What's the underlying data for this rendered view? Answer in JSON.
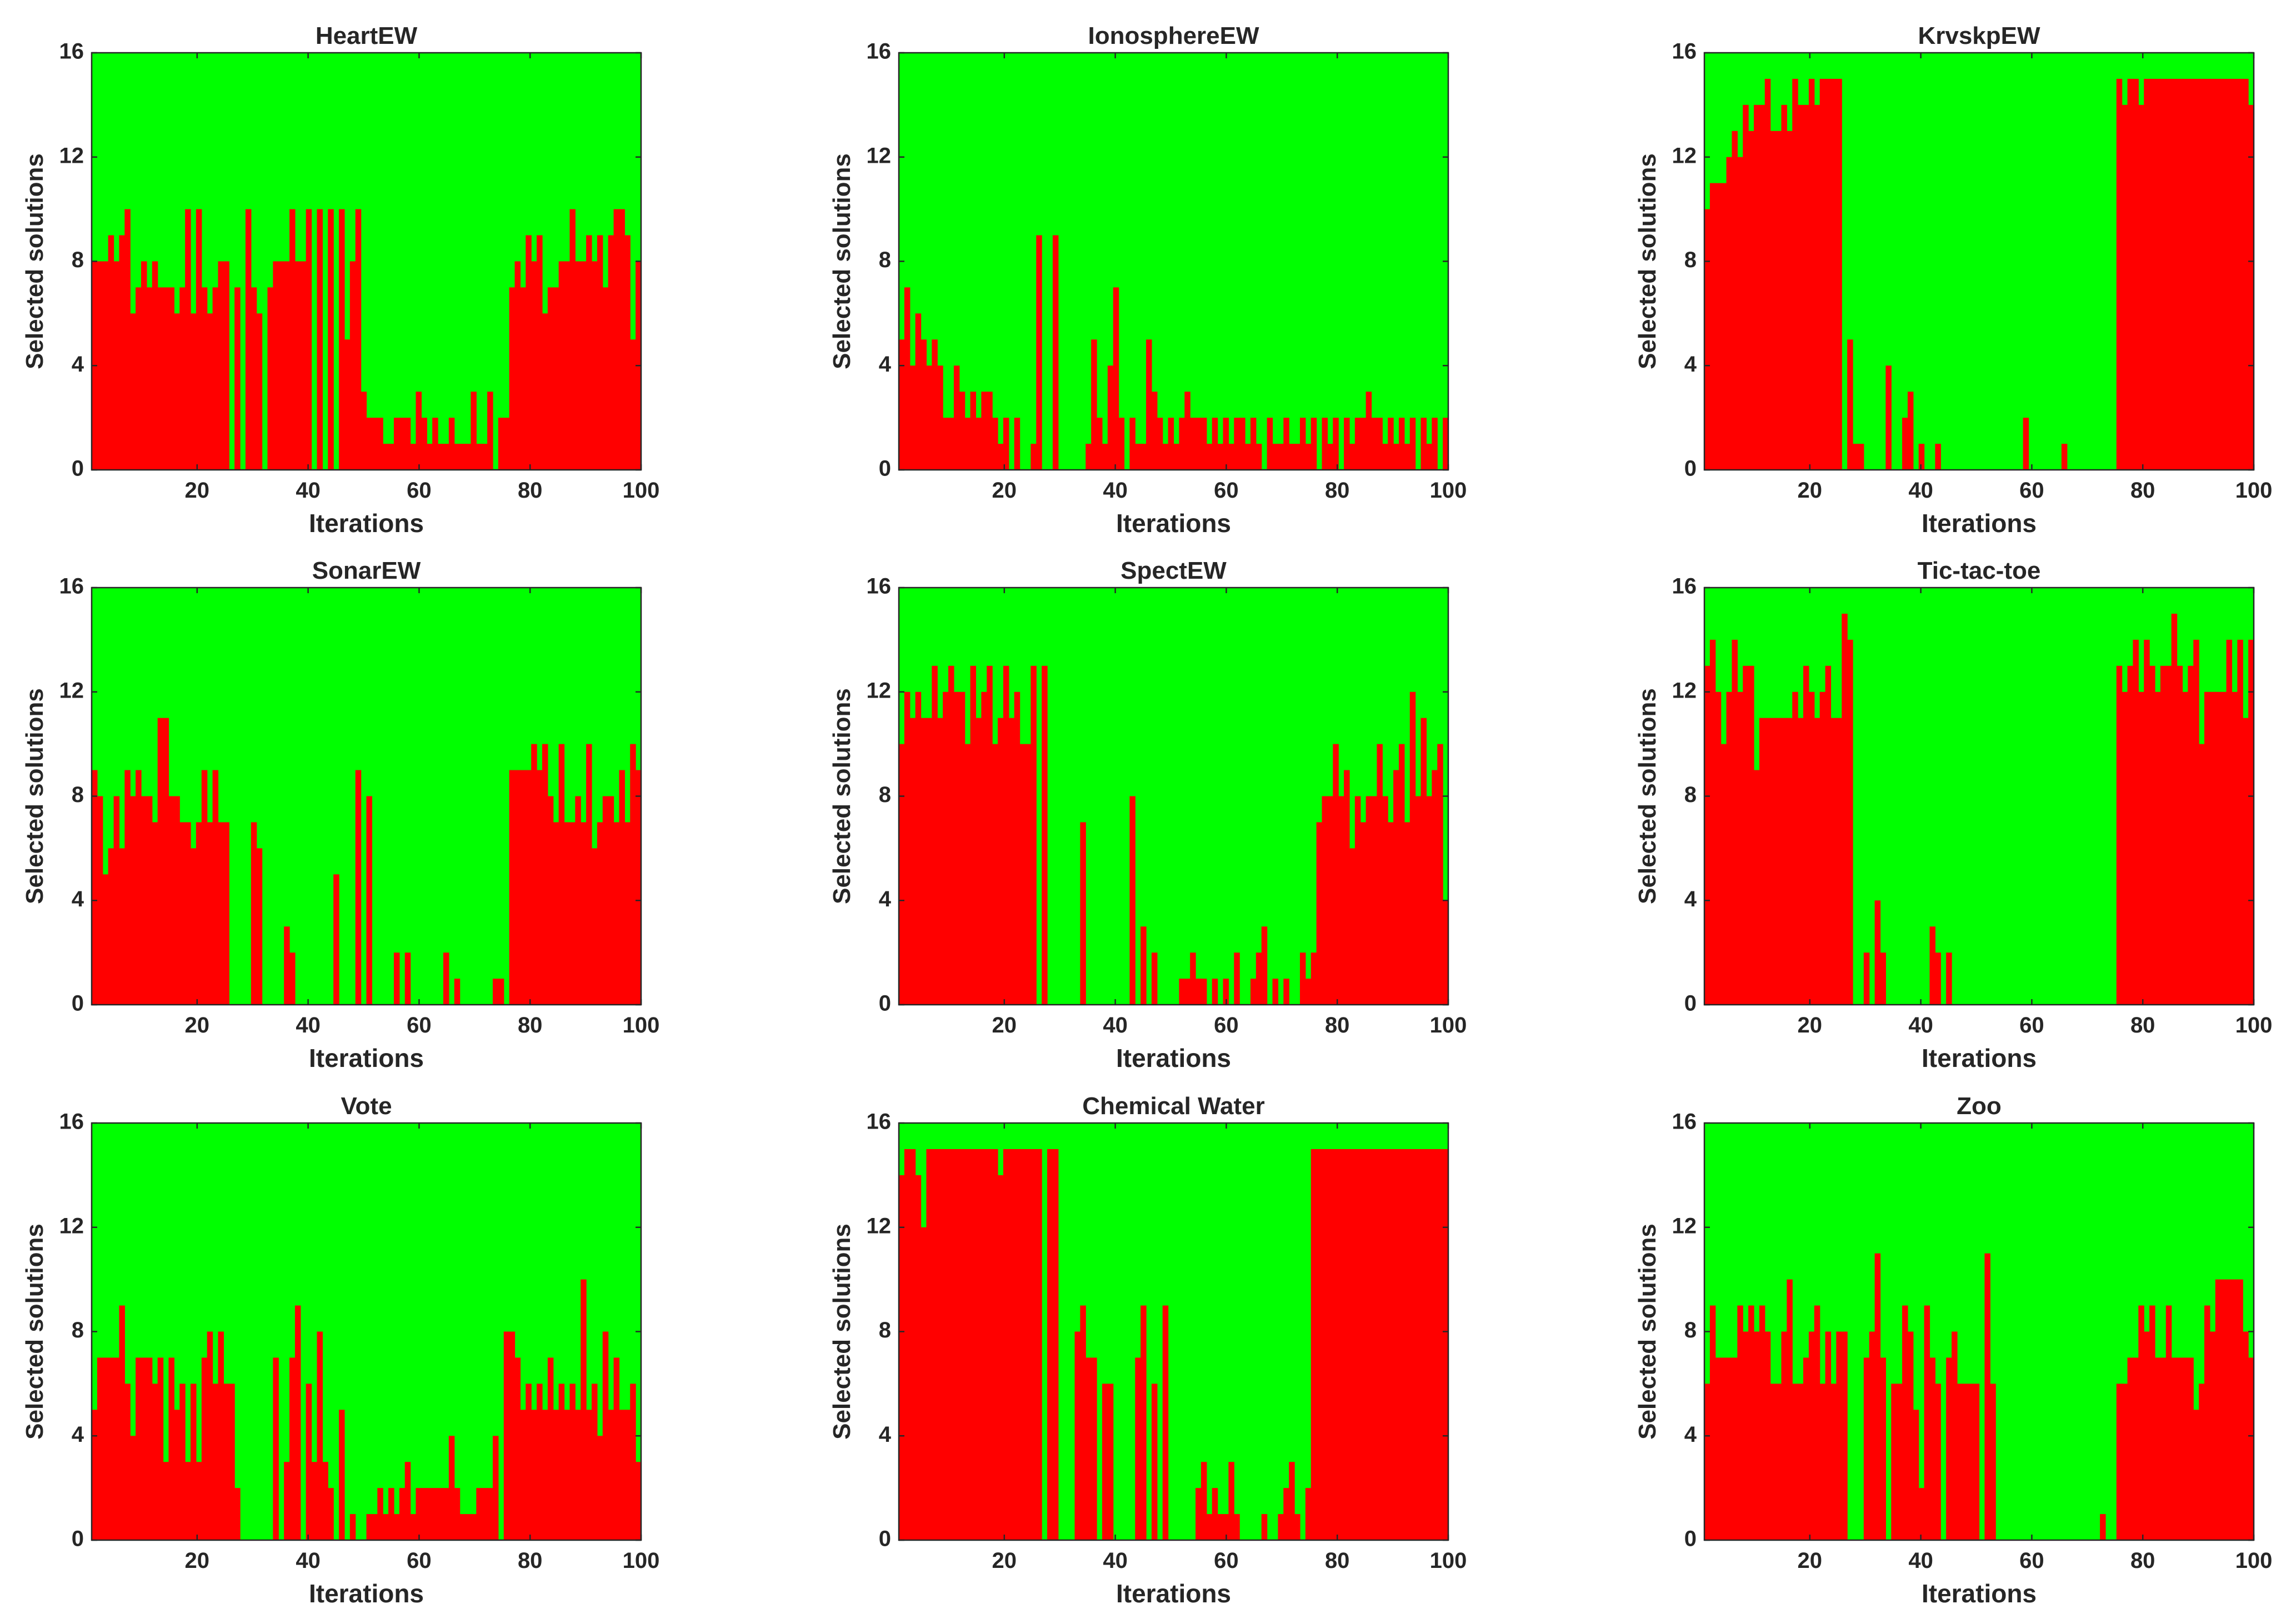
{
  "figure": {
    "colors": {
      "background": "#00ff00",
      "selected": "#ff0000",
      "axis": "#262626"
    }
  },
  "chart_data": [
    {
      "type": "bar",
      "title": "HeartEW",
      "xlabel": "Iterations",
      "ylabel": "Selected solutions",
      "xlim": [
        1,
        100
      ],
      "ylim": [
        0,
        16
      ],
      "xticks": [
        "20",
        "40",
        "60",
        "80",
        "100"
      ],
      "yticks": [
        "0",
        "4",
        "8",
        "12",
        "16"
      ],
      "values": [
        8,
        8,
        8,
        9,
        8,
        9,
        10,
        6,
        7,
        8,
        7,
        8,
        7,
        7,
        7,
        6,
        7,
        10,
        6,
        10,
        7,
        6,
        7,
        8,
        8,
        0,
        7,
        0,
        10,
        7,
        6,
        0,
        7,
        8,
        8,
        8,
        10,
        8,
        8,
        10,
        0,
        10,
        0,
        10,
        0,
        10,
        5,
        8,
        10,
        3,
        2,
        2,
        2,
        1,
        1,
        2,
        2,
        2,
        1,
        3,
        2,
        1,
        2,
        1,
        1,
        2,
        1,
        1,
        1,
        3,
        1,
        1,
        3,
        0,
        2,
        2,
        7,
        8,
        7,
        9,
        8,
        9,
        6,
        7,
        7,
        8,
        8,
        10,
        8,
        8,
        9,
        8,
        9,
        7,
        9,
        10,
        10,
        9,
        5,
        8
      ]
    },
    {
      "type": "bar",
      "title": "IonosphereEW",
      "xlabel": "Iterations",
      "ylabel": "Selected solutions",
      "xlim": [
        1,
        100
      ],
      "ylim": [
        0,
        16
      ],
      "xticks": [
        "20",
        "40",
        "60",
        "80",
        "100"
      ],
      "yticks": [
        "0",
        "4",
        "8",
        "12",
        "16"
      ],
      "values": [
        5,
        7,
        4,
        6,
        5,
        4,
        5,
        4,
        2,
        2,
        4,
        3,
        2,
        3,
        2,
        3,
        3,
        2,
        1,
        2,
        0,
        2,
        0,
        0,
        1,
        9,
        0,
        0,
        9,
        0,
        0,
        0,
        0,
        0,
        1,
        5,
        2,
        1,
        4,
        7,
        2,
        0,
        2,
        1,
        1,
        5,
        3,
        2,
        1,
        2,
        1,
        2,
        3,
        2,
        2,
        2,
        1,
        2,
        1,
        2,
        1,
        2,
        2,
        1,
        2,
        1,
        0,
        2,
        1,
        1,
        2,
        1,
        1,
        2,
        1,
        2,
        0,
        2,
        1,
        2,
        0,
        2,
        1,
        2,
        2,
        3,
        2,
        2,
        1,
        2,
        1,
        2,
        1,
        2,
        0,
        2,
        1,
        2,
        0,
        2
      ]
    },
    {
      "type": "bar",
      "title": "KrvskpEW",
      "xlabel": "Iterations",
      "ylabel": "Selected solutions",
      "xlim": [
        1,
        100
      ],
      "ylim": [
        0,
        16
      ],
      "xticks": [
        "20",
        "40",
        "60",
        "80",
        "100"
      ],
      "yticks": [
        "0",
        "4",
        "8",
        "12",
        "16"
      ],
      "values": [
        10,
        11,
        11,
        11,
        12,
        13,
        12,
        14,
        13,
        14,
        14,
        15,
        13,
        13,
        14,
        13,
        15,
        14,
        14,
        15,
        14,
        15,
        15,
        15,
        15,
        0,
        5,
        1,
        1,
        0,
        0,
        0,
        0,
        4,
        0,
        0,
        2,
        3,
        0,
        1,
        0,
        0,
        1,
        0,
        0,
        0,
        0,
        0,
        0,
        0,
        0,
        0,
        0,
        0,
        0,
        0,
        0,
        0,
        2,
        0,
        0,
        0,
        0,
        0,
        0,
        1,
        0,
        0,
        0,
        0,
        0,
        0,
        0,
        0,
        0,
        15,
        14,
        15,
        15,
        14,
        15,
        15,
        15,
        15,
        15,
        15,
        15,
        15,
        15,
        15,
        15,
        15,
        15,
        15,
        15,
        15,
        15,
        15,
        15,
        14
      ]
    },
    {
      "type": "bar",
      "title": "SonarEW",
      "xlabel": "Iterations",
      "ylabel": "Selected solutions",
      "xlim": [
        1,
        100
      ],
      "ylim": [
        0,
        16
      ],
      "xticks": [
        "20",
        "40",
        "60",
        "80",
        "100"
      ],
      "yticks": [
        "0",
        "4",
        "8",
        "12",
        "16"
      ],
      "values": [
        9,
        8,
        5,
        6,
        8,
        6,
        9,
        8,
        9,
        8,
        8,
        7,
        11,
        11,
        8,
        8,
        7,
        7,
        6,
        7,
        9,
        7,
        9,
        7,
        7,
        0,
        0,
        0,
        0,
        7,
        6,
        0,
        0,
        0,
        0,
        3,
        2,
        0,
        0,
        0,
        0,
        0,
        0,
        0,
        5,
        0,
        0,
        0,
        9,
        0,
        8,
        0,
        0,
        0,
        0,
        2,
        0,
        2,
        0,
        0,
        0,
        0,
        0,
        0,
        2,
        0,
        1,
        0,
        0,
        0,
        0,
        0,
        0,
        1,
        1,
        0,
        9,
        9,
        9,
        9,
        10,
        9,
        10,
        8,
        7,
        10,
        7,
        7,
        8,
        7,
        10,
        6,
        7,
        8,
        8,
        7,
        9,
        7,
        10,
        9
      ]
    },
    {
      "type": "bar",
      "title": "SpectEW",
      "xlabel": "Iterations",
      "ylabel": "Selected solutions",
      "xlim": [
        1,
        100
      ],
      "ylim": [
        0,
        16
      ],
      "xticks": [
        "20",
        "40",
        "60",
        "80",
        "100"
      ],
      "yticks": [
        "0",
        "4",
        "8",
        "12",
        "16"
      ],
      "values": [
        10,
        12,
        11,
        12,
        11,
        11,
        13,
        11,
        12,
        13,
        12,
        12,
        10,
        13,
        11,
        12,
        13,
        10,
        11,
        13,
        11,
        12,
        10,
        10,
        13,
        0,
        13,
        0,
        0,
        0,
        0,
        0,
        0,
        7,
        0,
        0,
        0,
        0,
        0,
        0,
        0,
        0,
        8,
        0,
        3,
        0,
        2,
        0,
        0,
        0,
        0,
        1,
        1,
        2,
        1,
        1,
        0,
        1,
        0,
        1,
        0,
        2,
        0,
        0,
        1,
        2,
        3,
        0,
        1,
        0,
        1,
        0,
        0,
        2,
        1,
        2,
        7,
        8,
        8,
        10,
        8,
        9,
        6,
        8,
        7,
        8,
        8,
        10,
        8,
        7,
        9,
        10,
        7,
        12,
        8,
        11,
        8,
        9,
        10,
        4
      ]
    },
    {
      "type": "bar",
      "title": "Tic-tac-toe",
      "xlabel": "Iterations",
      "ylabel": "Selected solutions",
      "xlim": [
        1,
        100
      ],
      "ylim": [
        0,
        16
      ],
      "xticks": [
        "20",
        "40",
        "60",
        "80",
        "100"
      ],
      "yticks": [
        "0",
        "4",
        "8",
        "12",
        "16"
      ],
      "values": [
        13,
        14,
        12,
        10,
        12,
        14,
        12,
        13,
        13,
        9,
        11,
        11,
        11,
        11,
        11,
        11,
        12,
        11,
        13,
        12,
        11,
        12,
        13,
        11,
        11,
        15,
        14,
        0,
        0,
        2,
        0,
        4,
        2,
        0,
        0,
        0,
        0,
        0,
        0,
        0,
        0,
        3,
        2,
        0,
        2,
        0,
        0,
        0,
        0,
        0,
        0,
        0,
        0,
        0,
        0,
        0,
        0,
        0,
        0,
        0,
        0,
        0,
        0,
        0,
        0,
        0,
        0,
        0,
        0,
        0,
        0,
        0,
        0,
        0,
        0,
        13,
        12,
        13,
        14,
        12,
        14,
        13,
        12,
        13,
        13,
        15,
        13,
        12,
        13,
        14,
        10,
        12,
        12,
        12,
        12,
        14,
        12,
        14,
        11,
        14
      ]
    },
    {
      "type": "bar",
      "title": "Vote",
      "xlabel": "Iterations",
      "ylabel": "Selected solutions",
      "xlim": [
        1,
        100
      ],
      "ylim": [
        0,
        16
      ],
      "xticks": [
        "20",
        "40",
        "60",
        "80",
        "100"
      ],
      "yticks": [
        "0",
        "4",
        "8",
        "12",
        "16"
      ],
      "values": [
        5,
        7,
        7,
        7,
        7,
        9,
        6,
        4,
        7,
        7,
        7,
        6,
        7,
        3,
        7,
        5,
        6,
        3,
        6,
        3,
        7,
        8,
        6,
        8,
        6,
        6,
        2,
        0,
        0,
        0,
        0,
        0,
        0,
        7,
        0,
        3,
        7,
        9,
        0,
        6,
        3,
        8,
        3,
        2,
        0,
        5,
        0,
        1,
        0,
        0,
        1,
        1,
        2,
        1,
        2,
        1,
        2,
        3,
        1,
        2,
        2,
        2,
        2,
        2,
        2,
        4,
        2,
        1,
        1,
        1,
        2,
        2,
        2,
        4,
        0,
        8,
        8,
        7,
        5,
        6,
        5,
        6,
        5,
        7,
        5,
        6,
        5,
        6,
        5,
        10,
        5,
        6,
        4,
        8,
        5,
        7,
        5,
        5,
        6,
        3
      ]
    },
    {
      "type": "bar",
      "title": "Chemical Water",
      "xlabel": "Iterations",
      "ylabel": "Selected solutions",
      "xlim": [
        1,
        100
      ],
      "ylim": [
        0,
        16
      ],
      "xticks": [
        "20",
        "40",
        "60",
        "80",
        "100"
      ],
      "yticks": [
        "0",
        "4",
        "8",
        "12",
        "16"
      ],
      "values": [
        14,
        15,
        15,
        14,
        12,
        15,
        15,
        15,
        15,
        15,
        15,
        15,
        15,
        15,
        15,
        15,
        15,
        15,
        14,
        15,
        15,
        15,
        15,
        15,
        15,
        15,
        0,
        15,
        15,
        0,
        0,
        0,
        8,
        9,
        7,
        7,
        0,
        6,
        6,
        0,
        0,
        0,
        0,
        7,
        9,
        0,
        6,
        0,
        9,
        0,
        0,
        0,
        0,
        0,
        2,
        3,
        1,
        2,
        1,
        1,
        3,
        1,
        0,
        0,
        0,
        0,
        1,
        0,
        0,
        1,
        2,
        3,
        1,
        0,
        2,
        15,
        15,
        15,
        15,
        15,
        15,
        15,
        15,
        15,
        15,
        15,
        15,
        15,
        15,
        15,
        15,
        15,
        15,
        15,
        15,
        15,
        15,
        15,
        15,
        15
      ]
    },
    {
      "type": "bar",
      "title": "Zoo",
      "xlabel": "Iterations",
      "ylabel": "Selected solutions",
      "xlim": [
        1,
        100
      ],
      "ylim": [
        0,
        16
      ],
      "xticks": [
        "20",
        "40",
        "60",
        "80",
        "100"
      ],
      "yticks": [
        "0",
        "4",
        "8",
        "12",
        "16"
      ],
      "values": [
        6,
        9,
        7,
        7,
        7,
        7,
        9,
        8,
        9,
        8,
        9,
        8,
        6,
        6,
        8,
        10,
        6,
        6,
        7,
        8,
        9,
        6,
        8,
        6,
        8,
        8,
        0,
        0,
        0,
        7,
        8,
        11,
        7,
        0,
        6,
        6,
        9,
        8,
        5,
        2,
        9,
        7,
        6,
        0,
        7,
        8,
        6,
        6,
        6,
        6,
        0,
        11,
        6,
        0,
        0,
        0,
        0,
        0,
        0,
        0,
        0,
        0,
        0,
        0,
        0,
        0,
        0,
        0,
        0,
        0,
        0,
        0,
        1,
        0,
        0,
        6,
        6,
        7,
        7,
        9,
        8,
        9,
        7,
        7,
        9,
        7,
        7,
        7,
        7,
        5,
        6,
        9,
        8,
        10,
        10,
        10,
        10,
        10,
        8,
        7
      ]
    }
  ]
}
